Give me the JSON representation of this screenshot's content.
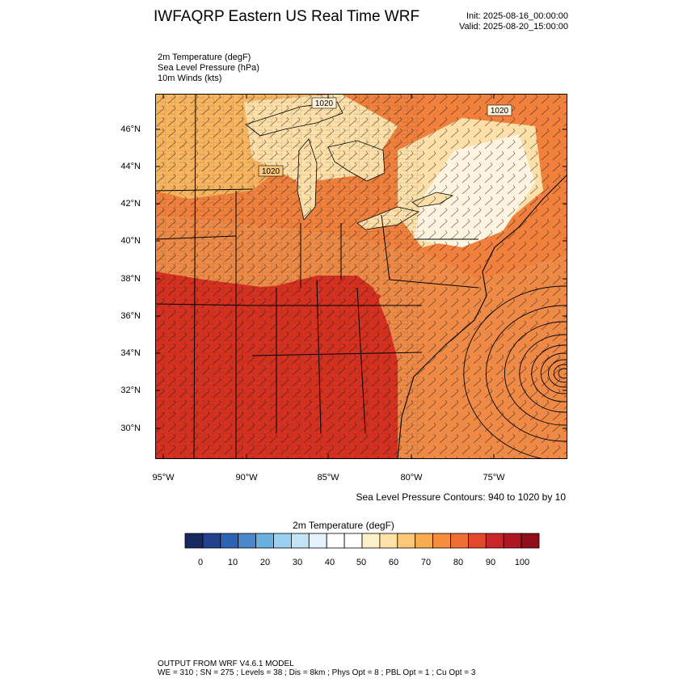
{
  "header": {
    "title": "IWFAQRP Eastern US Real Time WRF",
    "init": "Init: 2025-08-16_00:00:00",
    "valid": "Valid: 2025-08-20_15:00:00"
  },
  "fields": [
    "2m Temperature   (degF)",
    "Sea Level Pressure   (hPa)",
    "10m Winds   (kts)"
  ],
  "map": {
    "lat_labels": [
      "46°N",
      "44°N",
      "42°N",
      "40°N",
      "38°N",
      "36°N",
      "34°N",
      "32°N",
      "30°N"
    ],
    "lon_labels": [
      "95°W",
      "90°W",
      "85°W",
      "80°W",
      "75°W"
    ],
    "contour_labels": [
      "1020",
      "1020",
      "1020"
    ],
    "colors": {
      "hot": "#d7301f",
      "warm": "#f0803c",
      "mild": "#f9b45e",
      "cool": "#fde0a8",
      "cold": "#fff4e0",
      "water": "#ef8a46"
    }
  },
  "slp_note": "Sea Level Pressure Contours: 940 to 1020 by 10",
  "colorbar": {
    "title": "2m Temperature  (degF)",
    "tick_labels": [
      "0",
      "10",
      "20",
      "30",
      "40",
      "50",
      "60",
      "70",
      "80",
      "90",
      "100"
    ],
    "colors": [
      "#17295f",
      "#23418f",
      "#2e62b4",
      "#4a88cb",
      "#6ab0e0",
      "#9ad0f0",
      "#c2e4f6",
      "#e3f2fb",
      "#ffffff",
      "#ffffff",
      "#fff0cc",
      "#fde1a6",
      "#fcc877",
      "#f9ac4e",
      "#f58e3c",
      "#ef6e33",
      "#e34a2c",
      "#c9252a",
      "#ae1622",
      "#8f0e18"
    ]
  },
  "footer": {
    "line1": "OUTPUT FROM WRF V4.6.1 MODEL",
    "line2": "WE = 310 ; SN = 275 ; Levels = 38 ; Dis = 8km ; Phys Opt = 8 ; PBL Opt = 1 ; Cu Opt = 3"
  }
}
